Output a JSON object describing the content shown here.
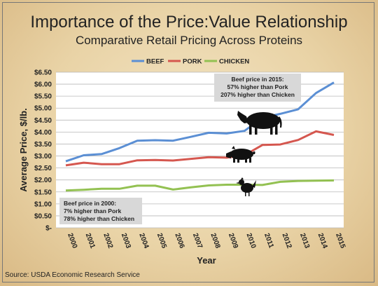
{
  "title": "Importance of the Price:Value Relationship",
  "subtitle": "Comparative Retail Pricing Across Proteins",
  "source": "Source: USDA Economic Research Service",
  "colors": {
    "beef": "#5b8fd4",
    "pork": "#d5574f",
    "chicken": "#93c152",
    "grid": "#b9b9b9",
    "annotation_bg": "#d8d8d8"
  },
  "icons": [
    "cow-icon",
    "pig-icon",
    "chicken-icon"
  ],
  "chart_data": {
    "type": "line",
    "xlabel": "Year",
    "ylabel": "Average Price, $/lb.",
    "ylim": [
      0,
      6.5
    ],
    "grid": true,
    "legend_position": "top-center",
    "x": [
      "2000",
      "2001",
      "2002",
      "2003",
      "2004",
      "2005",
      "2006",
      "2007",
      "2008",
      "2009",
      "2010",
      "2011",
      "2012",
      "2013",
      "2014",
      "2015"
    ],
    "y_tick_labels": [
      "$-",
      "$0.50",
      "$1.00",
      "$1.50",
      "$2.00",
      "$2.50",
      "$3.00",
      "$3.50",
      "$4.00",
      "$4.50",
      "$5.00",
      "$5.50",
      "$6.00",
      "$6.50"
    ],
    "series": [
      {
        "name": "BEEF",
        "color": "#5b8fd4",
        "values": [
          2.78,
          3.03,
          3.08,
          3.33,
          3.64,
          3.66,
          3.64,
          3.8,
          3.97,
          3.94,
          4.05,
          4.59,
          4.76,
          4.95,
          5.63,
          6.07
        ]
      },
      {
        "name": "PORK",
        "color": "#d5574f",
        "values": [
          2.61,
          2.72,
          2.66,
          2.66,
          2.82,
          2.83,
          2.81,
          2.88,
          2.95,
          2.93,
          3.03,
          3.46,
          3.48,
          3.67,
          4.03,
          3.88
        ]
      },
      {
        "name": "CHICKEN",
        "color": "#93c152",
        "values": [
          1.56,
          1.59,
          1.63,
          1.63,
          1.76,
          1.76,
          1.6,
          1.69,
          1.77,
          1.8,
          1.8,
          1.79,
          1.92,
          1.96,
          1.97,
          1.98
        ]
      }
    ],
    "annotations": [
      {
        "lines": [
          "Beef price in 2015:",
          "57% higher than Pork",
          "207% higher than Chicken"
        ]
      },
      {
        "lines": [
          "Beef price in 2000:",
          "7% higher than Pork",
          "78% higher than Chicken"
        ]
      }
    ]
  }
}
